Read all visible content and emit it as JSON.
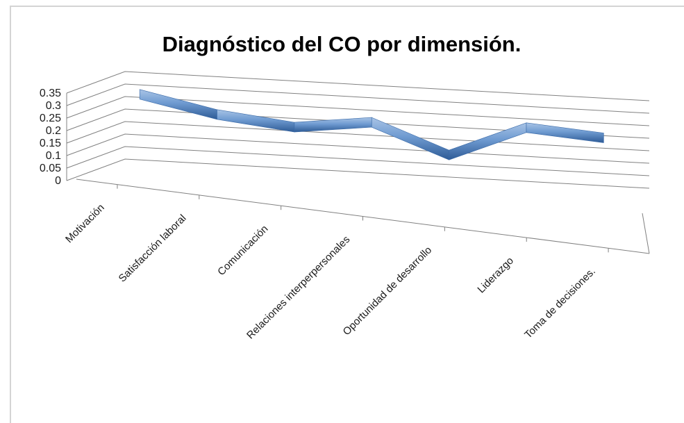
{
  "chart_data": {
    "type": "line",
    "title": "Diagnóstico del CO por dimensión.",
    "xlabel": "",
    "ylabel": "",
    "categories": [
      "Motivación",
      "Satisfacción laboral",
      "Comunicación",
      "Relaciones interperpersonales",
      "Oportunidad de desarrollo",
      "Liderazgo",
      "Toma de decisiones."
    ],
    "series": [
      {
        "values": [
          0.3,
          0.245,
          0.22,
          0.265,
          0.16,
          0.295,
          0.28
        ]
      }
    ],
    "y_ticks": [
      "0",
      "0.05",
      "0.1",
      "0.15",
      "0.2",
      "0.25",
      "0.3",
      "0.35"
    ],
    "ylim": [
      0,
      0.35
    ],
    "grid": true,
    "legend": "none",
    "style": "3d",
    "colors": {
      "line": "#4f81bd",
      "line_dark": "#2e5b96",
      "line_light": "#a9c4e6",
      "grid": "#808080"
    }
  }
}
